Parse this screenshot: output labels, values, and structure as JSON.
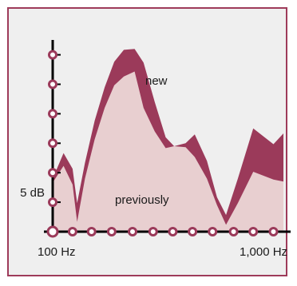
{
  "colors": {
    "panel_border": "#9e3b5a",
    "panel_background": "#efefef",
    "new_fill": "#9b3a5a",
    "previous_fill": "#e8cfd0",
    "axis": "#000000",
    "tick_marker": "#9b3a5a"
  },
  "chart_data": {
    "type": "area",
    "title": "",
    "xlabel": "",
    "ylabel": "",
    "x_scale": "log",
    "x_tick_labels": [
      "100 Hz",
      "1,000 Hz"
    ],
    "y_tick_labels": [
      "5 dB"
    ],
    "x": [
      100,
      112,
      123,
      129,
      140,
      155,
      172,
      190,
      210,
      235,
      258,
      290,
      325,
      355,
      400,
      440,
      500,
      555,
      610,
      690,
      810,
      1000,
      1110
    ],
    "series": [
      {
        "name": "new",
        "values": [
          5.4,
          8.0,
          6.4,
          2.9,
          7.0,
          11.3,
          14.7,
          17.3,
          18.5,
          18.6,
          17.2,
          13.2,
          9.6,
          8.7,
          9.0,
          9.9,
          7.2,
          3.5,
          1.7,
          5.4,
          10.5,
          8.9,
          10.0
        ]
      },
      {
        "name": "previously",
        "values": [
          5.0,
          6.7,
          4.8,
          1.0,
          5.4,
          9.4,
          12.6,
          14.9,
          15.8,
          16.3,
          12.6,
          10.2,
          8.5,
          8.7,
          8.6,
          7.6,
          5.4,
          2.7,
          0.7,
          2.9,
          6.1,
          5.3,
          5.1
        ]
      }
    ],
    "x_ticks": [
      100,
      123,
      150,
      185,
      230,
      285,
      350,
      430,
      530,
      660,
      810,
      1000
    ],
    "y_ticks": [
      0,
      3,
      6,
      9,
      12,
      15,
      18
    ]
  }
}
